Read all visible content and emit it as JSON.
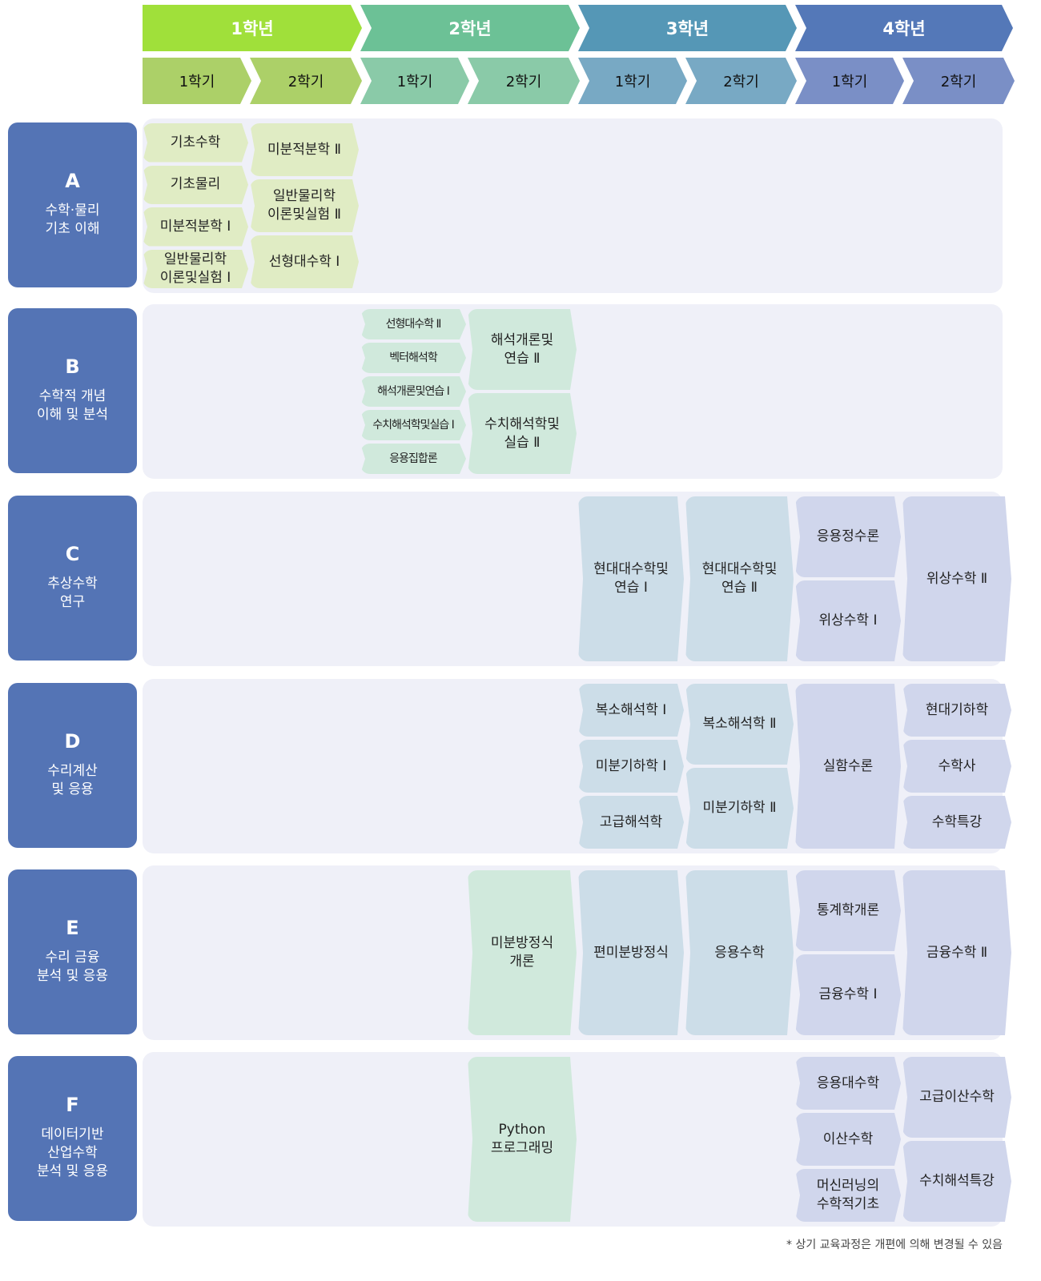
{
  "years": [
    {
      "label": "1학년",
      "color": "#a0e03a",
      "semester_color": "#acd068",
      "course_color": "#e0ecc4",
      "semesters": [
        "1학기",
        "2학기"
      ]
    },
    {
      "label": "2학년",
      "color": "#6cc196",
      "semester_color": "#8acaa8",
      "course_color": "#d0e9dc",
      "semesters": [
        "1학기",
        "2학기"
      ]
    },
    {
      "label": "3학년",
      "color": "#5597b6",
      "semester_color": "#78a9c4",
      "course_color": "#ccdde8",
      "semesters": [
        "1학기",
        "2학기"
      ]
    },
    {
      "label": "4학년",
      "color": "#5478b8",
      "semester_color": "#7a8fc6",
      "course_color": "#d0d6ec",
      "semesters": [
        "1학기",
        "2학기"
      ]
    }
  ],
  "tracks": [
    {
      "letter": "A",
      "title": "수학·물리\n기초 이해",
      "cells": [
        {
          "year": 1,
          "semester": 1,
          "courses": [
            "기초수학",
            "기초물리",
            "미분적분학 Ⅰ",
            "일반물리학\n이론및실험 Ⅰ"
          ]
        },
        {
          "year": 1,
          "semester": 2,
          "courses": [
            "미분적분학 Ⅱ",
            "일반물리학\n이론및실험 Ⅱ",
            "선형대수학 Ⅰ"
          ]
        }
      ]
    },
    {
      "letter": "B",
      "title": "수학적 개념\n이해 및 분석",
      "cells": [
        {
          "year": 2,
          "semester": 1,
          "courses": [
            "선형대수학 Ⅱ",
            "벡터해석학",
            "해석개론및연습 Ⅰ",
            "수치해석학및실습 Ⅰ",
            "응용집합론"
          ]
        },
        {
          "year": 2,
          "semester": 2,
          "courses": [
            "해석개론및\n연습 Ⅱ",
            "수치해석학및\n실습 Ⅱ"
          ]
        }
      ]
    },
    {
      "letter": "C",
      "title": "추상수학\n연구",
      "cells": [
        {
          "year": 3,
          "semester": 1,
          "courses": [
            "현대대수학및\n연습 Ⅰ"
          ]
        },
        {
          "year": 3,
          "semester": 2,
          "courses": [
            "현대대수학및\n연습 Ⅱ"
          ]
        },
        {
          "year": 4,
          "semester": 1,
          "courses": [
            "응용정수론",
            "위상수학 Ⅰ"
          ]
        },
        {
          "year": 4,
          "semester": 2,
          "courses": [
            "위상수학 Ⅱ"
          ]
        }
      ]
    },
    {
      "letter": "D",
      "title": "수리계산\n및 응용",
      "cells": [
        {
          "year": 3,
          "semester": 1,
          "courses": [
            "복소해석학 Ⅰ",
            "미분기하학 Ⅰ",
            "고급해석학"
          ]
        },
        {
          "year": 3,
          "semester": 2,
          "courses": [
            "복소해석학 Ⅱ",
            "미분기하학 Ⅱ"
          ]
        },
        {
          "year": 4,
          "semester": 1,
          "courses": [
            "실함수론"
          ]
        },
        {
          "year": 4,
          "semester": 2,
          "courses": [
            "현대기하학",
            "수학사",
            "수학특강"
          ]
        }
      ]
    },
    {
      "letter": "E",
      "title": "수리 금융\n분석 및 응용",
      "cells": [
        {
          "year": 2,
          "semester": 2,
          "courses": [
            "미분방정식\n개론"
          ]
        },
        {
          "year": 3,
          "semester": 1,
          "courses": [
            "편미분방정식"
          ]
        },
        {
          "year": 3,
          "semester": 2,
          "courses": [
            "응용수학"
          ]
        },
        {
          "year": 4,
          "semester": 1,
          "courses": [
            "통계학개론",
            "금융수학 Ⅰ"
          ]
        },
        {
          "year": 4,
          "semester": 2,
          "courses": [
            "금융수학 Ⅱ"
          ]
        }
      ]
    },
    {
      "letter": "F",
      "title": "데이터기반\n산업수학\n분석 및 응용",
      "cells": [
        {
          "year": 2,
          "semester": 2,
          "courses": [
            "Python\n프로그래밍"
          ]
        },
        {
          "year": 4,
          "semester": 1,
          "courses": [
            "응용대수학",
            "이산수학",
            "머신러닝의\n수학적기초"
          ]
        },
        {
          "year": 4,
          "semester": 2,
          "courses": [
            "고급이산수학",
            "수치해석특강"
          ]
        }
      ]
    }
  ],
  "footnote": "* 상기 교육과정은 개편에 의해 변경될 수 있음"
}
